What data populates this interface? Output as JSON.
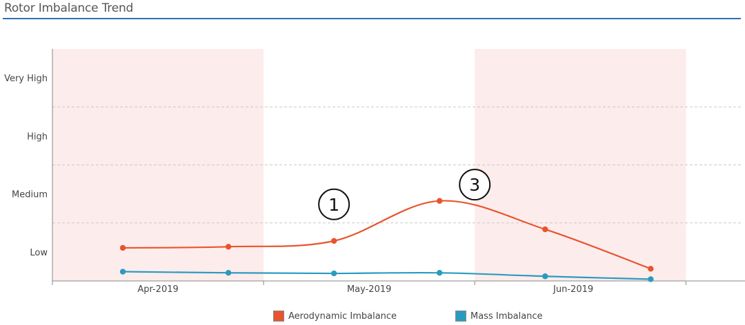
{
  "header": {
    "title": "Rotor Imbalance Trend"
  },
  "chart_data": {
    "type": "line",
    "title": "Rotor Imbalance Trend",
    "xlabel": "",
    "ylabel": "",
    "y_categories": [
      "Low",
      "Medium",
      "High",
      "Very High"
    ],
    "ylim": [
      0,
      4
    ],
    "x_ticks": [
      "Apr-2019",
      "May-2019",
      "Jun-2019"
    ],
    "x": [
      "2019-03-19",
      "2019-04-03",
      "2019-04-18",
      "2019-05-03",
      "2019-05-18",
      "2019-06-02"
    ],
    "series": [
      {
        "name": "Aerodynamic Imbalance",
        "color": "#e8542e",
        "values": [
          0.57,
          0.59,
          0.69,
          1.38,
          0.89,
          0.21
        ]
      },
      {
        "name": "Mass Imbalance",
        "color": "#2a9bbf",
        "values": [
          0.16,
          0.14,
          0.13,
          0.14,
          0.08,
          0.03
        ]
      }
    ],
    "shaded_bands": [
      {
        "from": "2019-03-09",
        "to": "2019-04-08",
        "color": "#fdecec"
      },
      {
        "from": "2019-05-08",
        "to": "2019-06-07",
        "color": "#fdecec"
      }
    ],
    "annotations": [
      {
        "label": "1",
        "x": "2019-04-18",
        "y": 1.32
      },
      {
        "label": "3",
        "x": "2019-05-08",
        "y": 1.66
      }
    ],
    "grid": "horizontal-dashed",
    "legend": "bottom-center"
  }
}
